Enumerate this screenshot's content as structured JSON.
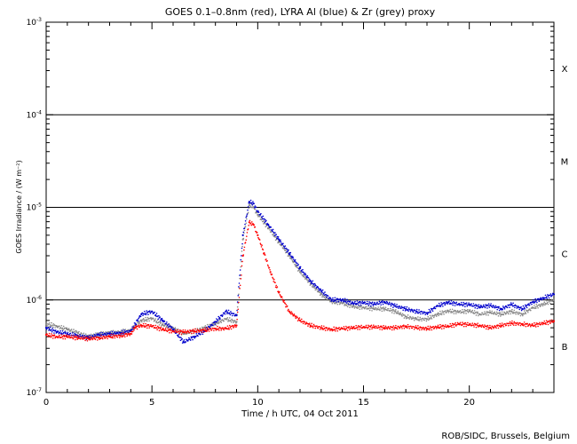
{
  "chart_data": {
    "type": "scatter",
    "title": "GOES 0.1–0.8nm (red), LYRA Al (blue) & Zr (grey) proxy",
    "xlabel": "Time / h UTC, 04 Oct 2011",
    "ylabel": "GOES Irradiance / (W m⁻²)",
    "credit": "ROB/SIDC, Brussels, Belgium",
    "xlim": [
      0,
      24
    ],
    "ylim_log10": [
      -7,
      -3
    ],
    "yscale": "log",
    "x_ticks": [
      0,
      5,
      10,
      15,
      20
    ],
    "y_tick_exponents": [
      -7,
      -6,
      -5,
      -4,
      -3
    ],
    "flare_class_lines": [
      -6,
      -5,
      -4
    ],
    "flare_classes": [
      {
        "label": "B",
        "log10": -6.5
      },
      {
        "label": "C",
        "log10": -5.5
      },
      {
        "label": "M",
        "log10": -4.5
      },
      {
        "label": "X",
        "log10": -3.5
      }
    ],
    "series": [
      {
        "name": "GOES 0.1–0.8nm",
        "color": "#ff0000",
        "x": [
          0,
          0.5,
          1,
          1.5,
          2,
          2.5,
          3,
          3.5,
          4,
          4.2,
          4.5,
          5,
          5.5,
          6,
          6.5,
          7,
          7.5,
          8,
          8.5,
          9,
          9.3,
          9.6,
          9.8,
          10,
          10.3,
          10.6,
          11,
          11.5,
          12,
          12.5,
          13,
          13.5,
          14,
          14.5,
          15,
          15.5,
          16,
          16.5,
          17,
          17.5,
          18,
          18.5,
          19,
          19.5,
          20,
          20.5,
          21,
          21.5,
          22,
          22.5,
          23,
          23.5,
          24
        ],
        "y": [
          4.2e-07,
          4e-07,
          4e-07,
          3.9e-07,
          3.8e-07,
          3.9e-07,
          4e-07,
          4.1e-07,
          4.3e-07,
          5e-07,
          5.3e-07,
          5.2e-07,
          4.8e-07,
          4.6e-07,
          4.5e-07,
          4.6e-07,
          4.7e-07,
          4.9e-07,
          4.9e-07,
          5.3e-07,
          3e-06,
          6.9e-06,
          6.5e-06,
          5e-06,
          3.2e-06,
          2e-06,
          1.2e-06,
          7.5e-07,
          6e-07,
          5.3e-07,
          5e-07,
          4.8e-07,
          4.9e-07,
          5e-07,
          5.1e-07,
          5.1e-07,
          5e-07,
          5e-07,
          5.2e-07,
          5e-07,
          4.9e-07,
          5.1e-07,
          5.2e-07,
          5.5e-07,
          5.4e-07,
          5.3e-07,
          5e-07,
          5.3e-07,
          5.6e-07,
          5.5e-07,
          5.3e-07,
          5.6e-07,
          5.9e-07
        ]
      },
      {
        "name": "LYRA Al proxy",
        "color": "#0000cc",
        "x": [
          0,
          0.5,
          1,
          1.5,
          2,
          2.5,
          3,
          3.5,
          4,
          4.5,
          5,
          5.5,
          6,
          6.5,
          7,
          7.5,
          8,
          8.5,
          9,
          9.3,
          9.6,
          9.8,
          10,
          10.5,
          11,
          11.5,
          12,
          12.5,
          13,
          13.5,
          14,
          14.5,
          15,
          15.5,
          16,
          16.5,
          17,
          17.5,
          18,
          18.5,
          19,
          19.5,
          20,
          20.5,
          21,
          21.5,
          22,
          22.5,
          23,
          23.5,
          24
        ],
        "y": [
          5e-07,
          4.5e-07,
          4.3e-07,
          4.1e-07,
          3.9e-07,
          4.2e-07,
          4.3e-07,
          4.4e-07,
          4.6e-07,
          7e-07,
          7.5e-07,
          6e-07,
          4.8e-07,
          3.5e-07,
          4e-07,
          4.6e-07,
          5.8e-07,
          7.5e-07,
          6.8e-07,
          5e-06,
          1.15e-05,
          1.1e-05,
          9e-06,
          6.5e-06,
          4.5e-06,
          3.2e-06,
          2.2e-06,
          1.6e-06,
          1.25e-06,
          1e-06,
          1e-06,
          9.2e-07,
          9.3e-07,
          9e-07,
          9.5e-07,
          8.6e-07,
          8e-07,
          7.5e-07,
          7.2e-07,
          8.6e-07,
          9.4e-07,
          9e-07,
          8.9e-07,
          8.4e-07,
          8.7e-07,
          8e-07,
          8.9e-07,
          8e-07,
          9.5e-07,
          1.05e-06,
          1.15e-06
        ]
      },
      {
        "name": "LYRA Zr proxy",
        "color": "#888888",
        "x": [
          0,
          0.5,
          1,
          1.5,
          2,
          2.5,
          3,
          3.5,
          4,
          4.5,
          5,
          5.5,
          6,
          6.5,
          7,
          7.5,
          8,
          8.5,
          9,
          9.3,
          9.6,
          9.8,
          10,
          10.5,
          11,
          11.5,
          12,
          12.5,
          13,
          13.5,
          14,
          14.5,
          15,
          15.5,
          16,
          16.5,
          17,
          17.5,
          18,
          18.5,
          19,
          19.5,
          20,
          20.5,
          21,
          21.5,
          22,
          22.5,
          23,
          23.5,
          24
        ],
        "y": [
          5.5e-07,
          5.2e-07,
          4.8e-07,
          4.4e-07,
          4e-07,
          4.3e-07,
          4.4e-07,
          4.5e-07,
          4.7e-07,
          6e-07,
          6.3e-07,
          5.4e-07,
          5e-07,
          4.3e-07,
          4.6e-07,
          5e-07,
          5.6e-07,
          6.2e-07,
          5.8e-07,
          4.5e-06,
          1.05e-05,
          1e-05,
          8.3e-06,
          6e-06,
          4.2e-06,
          3e-06,
          2e-06,
          1.5e-06,
          1.15e-06,
          9.6e-07,
          9.2e-07,
          8.5e-07,
          8.3e-07,
          8e-07,
          8e-07,
          7.5e-07,
          6.6e-07,
          6.2e-07,
          6.2e-07,
          7e-07,
          7.6e-07,
          7.4e-07,
          7.6e-07,
          7e-07,
          7.3e-07,
          7e-07,
          7.5e-07,
          7e-07,
          8.2e-07,
          9e-07,
          1e-06
        ]
      }
    ]
  }
}
